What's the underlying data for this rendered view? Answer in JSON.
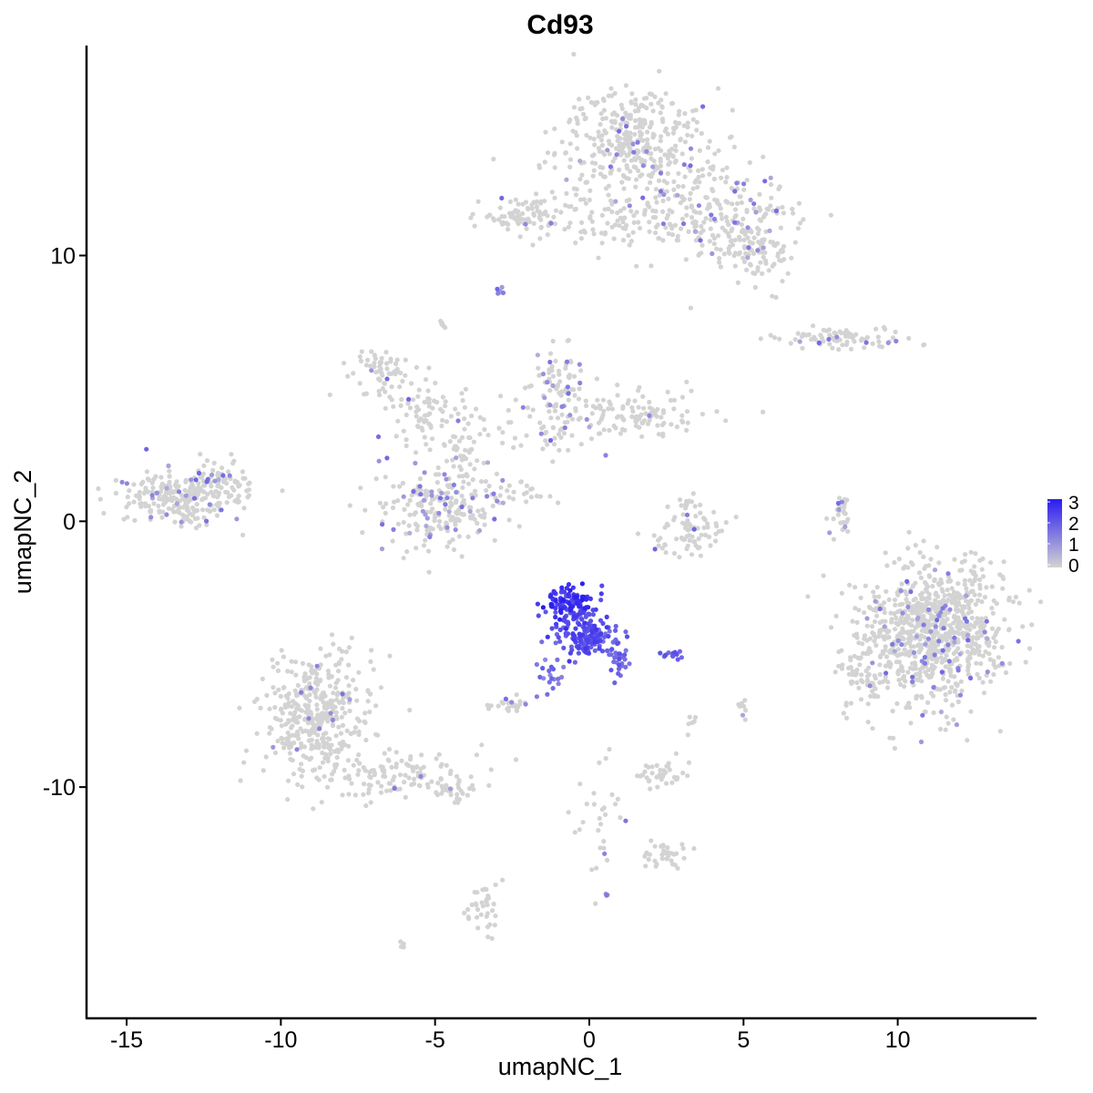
{
  "chart_data": {
    "type": "scatter",
    "title": "Cd93",
    "xlabel": "umapNC_1",
    "ylabel": "umapNC_2",
    "xlim": [
      -16.3,
      14.5
    ],
    "ylim": [
      -18.7,
      17.9
    ],
    "x_ticks": [
      -15,
      -10,
      -5,
      0,
      5,
      10
    ],
    "x_tick_labels": [
      "-15",
      "-10",
      "-5",
      "0",
      "5",
      "10"
    ],
    "y_ticks": [
      -10,
      0,
      10
    ],
    "y_tick_labels": [
      "-10",
      "0",
      "10"
    ],
    "grid": false,
    "legend": {
      "placement": "right",
      "labels": [
        "3",
        "2",
        "1",
        "0"
      ],
      "values": [
        3,
        2,
        1,
        0
      ],
      "low_color": "#d3d3d3",
      "high_color": "#2a1cf0"
    },
    "colors": {
      "low": "#d3d3d3",
      "high": "#2a1cf0"
    },
    "clusters": [
      {
        "cx": 1.6,
        "cy": 14.3,
        "sx": 1.3,
        "sy": 1.1,
        "n": 380,
        "expr": 0.05
      },
      {
        "cx": 4.0,
        "cy": 11.5,
        "sx": 1.4,
        "sy": 0.9,
        "n": 240,
        "expr": 0.06
      },
      {
        "cx": 5.5,
        "cy": 10.0,
        "sx": 0.6,
        "sy": 0.6,
        "n": 80,
        "expr": 0.08
      },
      {
        "cx": -2.0,
        "cy": 11.5,
        "sx": 0.7,
        "sy": 0.4,
        "n": 90,
        "expr": 0.03
      },
      {
        "cx": 0.8,
        "cy": 11.3,
        "sx": 1.3,
        "sy": 0.5,
        "n": 60,
        "expr": 0.02
      },
      {
        "cx": -2.9,
        "cy": 8.7,
        "sx": 0.1,
        "sy": 0.1,
        "n": 6,
        "expr": 0.5
      },
      {
        "cx": -4.7,
        "cy": 7.4,
        "sx": 0.1,
        "sy": 0.1,
        "n": 6,
        "expr": 0.0
      },
      {
        "cx": 8.5,
        "cy": 6.9,
        "sx": 1.1,
        "sy": 0.2,
        "n": 80,
        "expr": 0.1
      },
      {
        "cx": -6.8,
        "cy": 5.6,
        "sx": 0.5,
        "sy": 0.4,
        "n": 60,
        "expr": 0.03
      },
      {
        "cx": -5.2,
        "cy": 4.0,
        "sx": 0.9,
        "sy": 0.5,
        "n": 70,
        "expr": 0.03
      },
      {
        "cx": -4.2,
        "cy": 2.5,
        "sx": 0.4,
        "sy": 1.0,
        "n": 50,
        "expr": 0.04
      },
      {
        "cx": -1.0,
        "cy": 5.2,
        "sx": 0.5,
        "sy": 0.6,
        "n": 70,
        "expr": 0.2
      },
      {
        "cx": 1.5,
        "cy": 4.0,
        "sx": 1.1,
        "sy": 0.5,
        "n": 110,
        "expr": 0.1
      },
      {
        "cx": -1.5,
        "cy": 3.6,
        "sx": 0.9,
        "sy": 0.6,
        "n": 60,
        "expr": 0.15
      },
      {
        "cx": -4.8,
        "cy": 0.6,
        "sx": 1.0,
        "sy": 0.9,
        "n": 220,
        "expr": 0.22
      },
      {
        "cx": -2.0,
        "cy": 1.0,
        "sx": 0.6,
        "sy": 0.2,
        "n": 20,
        "expr": 0.0
      },
      {
        "cx": -13.2,
        "cy": 0.9,
        "sx": 1.0,
        "sy": 0.5,
        "n": 260,
        "expr": 0.12
      },
      {
        "cx": -11.8,
        "cy": 1.6,
        "sx": 0.4,
        "sy": 0.4,
        "n": 40,
        "expr": 0.1
      },
      {
        "cx": 3.3,
        "cy": -0.6,
        "sx": 0.7,
        "sy": 0.4,
        "n": 70,
        "expr": 0.04
      },
      {
        "cx": 3.2,
        "cy": 0.6,
        "sx": 0.2,
        "sy": 0.3,
        "n": 15,
        "expr": 0.05
      },
      {
        "cx": 8.2,
        "cy": 0.3,
        "sx": 0.2,
        "sy": 0.5,
        "n": 30,
        "expr": 0.25
      },
      {
        "cx": 11.2,
        "cy": -4.2,
        "sx": 1.2,
        "sy": 1.3,
        "n": 900,
        "expr": 0.07
      },
      {
        "cx": 8.9,
        "cy": -5.5,
        "sx": 0.4,
        "sy": 0.7,
        "n": 60,
        "expr": 0.06
      },
      {
        "cx": -0.6,
        "cy": -3.1,
        "sx": 0.4,
        "sy": 0.3,
        "n": 120,
        "expr": 1.0,
        "vmin": 2.0,
        "vmax": 3.0
      },
      {
        "cx": -0.1,
        "cy": -4.3,
        "sx": 0.5,
        "sy": 0.4,
        "n": 150,
        "expr": 1.0,
        "vmin": 1.6,
        "vmax": 2.6
      },
      {
        "cx": 0.9,
        "cy": -5.2,
        "sx": 0.2,
        "sy": 0.4,
        "n": 30,
        "expr": 1.0,
        "vmin": 1.4,
        "vmax": 2.2
      },
      {
        "cx": -1.4,
        "cy": -5.8,
        "sx": 0.25,
        "sy": 0.4,
        "n": 20,
        "expr": 1.0,
        "vmin": 1.2,
        "vmax": 2.0
      },
      {
        "cx": 2.7,
        "cy": -5.0,
        "sx": 0.2,
        "sy": 0.1,
        "n": 15,
        "expr": 1.0,
        "vmin": 1.6,
        "vmax": 2.2
      },
      {
        "cx": -2.6,
        "cy": -6.9,
        "sx": 0.35,
        "sy": 0.15,
        "n": 25,
        "expr": 0.1
      },
      {
        "cx": -8.8,
        "cy": -7.3,
        "sx": 0.9,
        "sy": 1.2,
        "n": 400,
        "expr": 0.02
      },
      {
        "cx": -6.3,
        "cy": -9.5,
        "sx": 1.4,
        "sy": 0.5,
        "n": 120,
        "expr": 0.02
      },
      {
        "cx": -4.5,
        "cy": -10.2,
        "sx": 0.5,
        "sy": 0.2,
        "n": 25,
        "expr": 0.0
      },
      {
        "cx": 2.3,
        "cy": -9.5,
        "sx": 0.4,
        "sy": 0.3,
        "n": 40,
        "expr": 0.0
      },
      {
        "cx": 2.4,
        "cy": -12.4,
        "sx": 0.4,
        "sy": 0.3,
        "n": 35,
        "expr": 0.0
      },
      {
        "cx": 0.3,
        "cy": -11.0,
        "sx": 0.4,
        "sy": 1.4,
        "n": 30,
        "expr": 0.03
      },
      {
        "cx": -3.5,
        "cy": -14.6,
        "sx": 0.25,
        "sy": 0.6,
        "n": 35,
        "expr": 0.0
      },
      {
        "cx": 5.0,
        "cy": -7.2,
        "sx": 0.15,
        "sy": 0.2,
        "n": 8,
        "expr": 0.2
      },
      {
        "cx": 3.3,
        "cy": -7.5,
        "sx": 0.1,
        "sy": 0.3,
        "n": 6,
        "expr": 0.0
      },
      {
        "cx": 0.6,
        "cy": -14.0,
        "sx": 0.05,
        "sy": 0.05,
        "n": 3,
        "expr": 0.6
      },
      {
        "cx": -6.1,
        "cy": -16.0,
        "sx": 0.1,
        "sy": 0.1,
        "n": 4,
        "expr": 0.0
      },
      {
        "cx": 1.2,
        "cy": 6.0,
        "sx": 0.1,
        "sy": 0.1,
        "n": 0,
        "expr": 0.0
      }
    ]
  }
}
